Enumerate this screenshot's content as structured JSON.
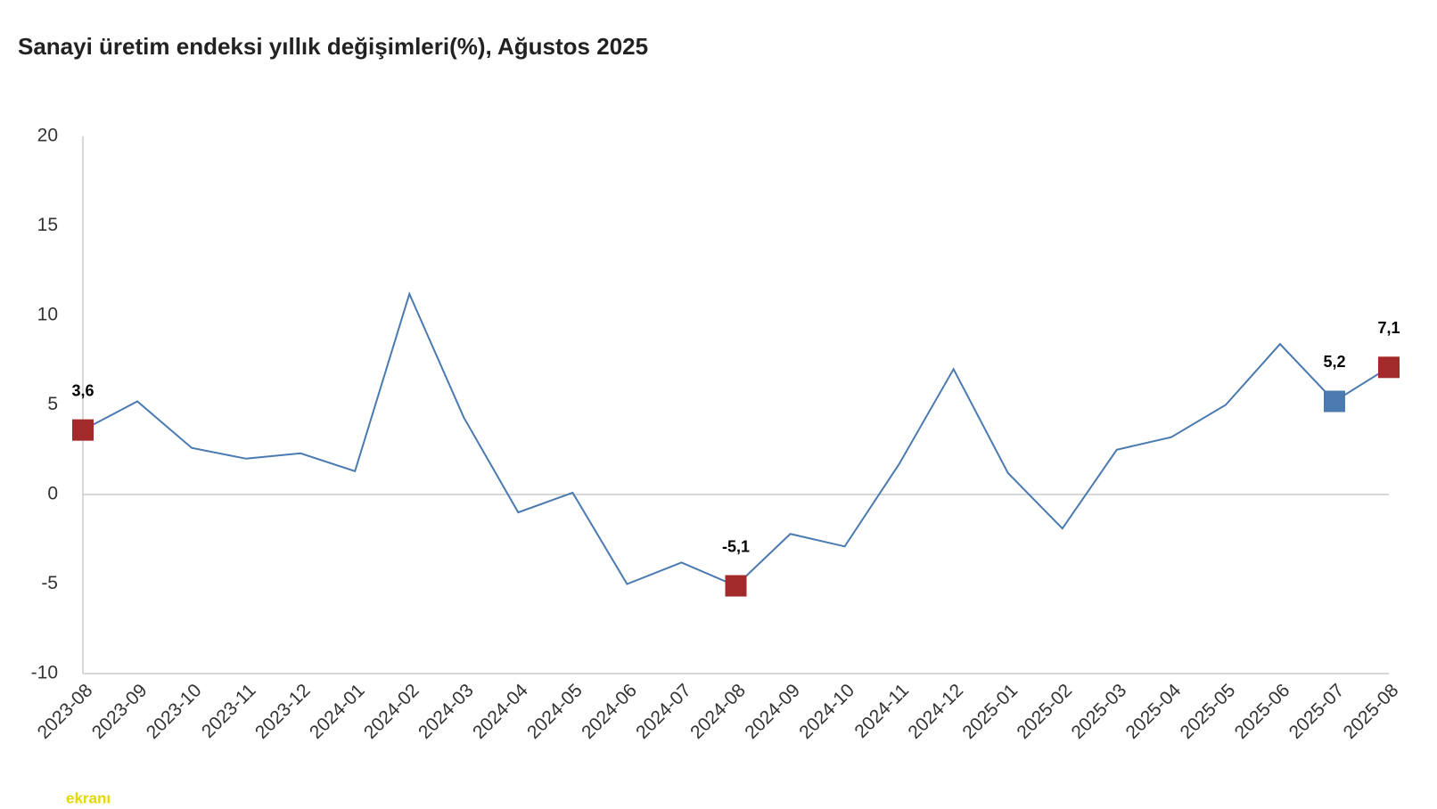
{
  "chart_data": {
    "type": "line",
    "title": "Sanayi üretim endeksi yıllık değişimleri(%), Ağustos 2025",
    "categories": [
      "2023-08",
      "2023-09",
      "2023-10",
      "2023-11",
      "2023-12",
      "2024-01",
      "2024-02",
      "2024-03",
      "2024-04",
      "2024-05",
      "2024-06",
      "2024-07",
      "2024-08",
      "2024-09",
      "2024-10",
      "2024-11",
      "2024-12",
      "2025-01",
      "2025-02",
      "2025-03",
      "2025-04",
      "2025-05",
      "2025-06",
      "2025-07",
      "2025-08"
    ],
    "series": [
      {
        "color": "#4a7ab0",
        "values": [
          3.6,
          5.2,
          2.6,
          2.0,
          2.3,
          1.3,
          11.2,
          4.3,
          -1.0,
          0.1,
          -5.0,
          -3.8,
          -5.1,
          -2.2,
          -2.9,
          1.7,
          7.0,
          1.2,
          -1.9,
          2.5,
          3.2,
          5.0,
          8.4,
          5.2,
          7.1
        ],
        "value_labels": [
          "3,6",
          null,
          null,
          null,
          null,
          null,
          null,
          null,
          null,
          null,
          null,
          null,
          "-5,1",
          null,
          null,
          null,
          null,
          null,
          null,
          null,
          null,
          null,
          null,
          "5,2",
          "7,1"
        ],
        "marker_colors": [
          "#a32a2a",
          null,
          null,
          null,
          null,
          null,
          null,
          null,
          null,
          null,
          null,
          null,
          "#a32a2a",
          null,
          null,
          null,
          null,
          null,
          null,
          null,
          null,
          null,
          null,
          "#4a7ab0",
          "#a32a2a"
        ]
      }
    ],
    "ylim": [
      -10,
      20
    ],
    "yticks": [
      -10,
      -5,
      0,
      5,
      10,
      15,
      20
    ],
    "watermark": "ekranı"
  }
}
